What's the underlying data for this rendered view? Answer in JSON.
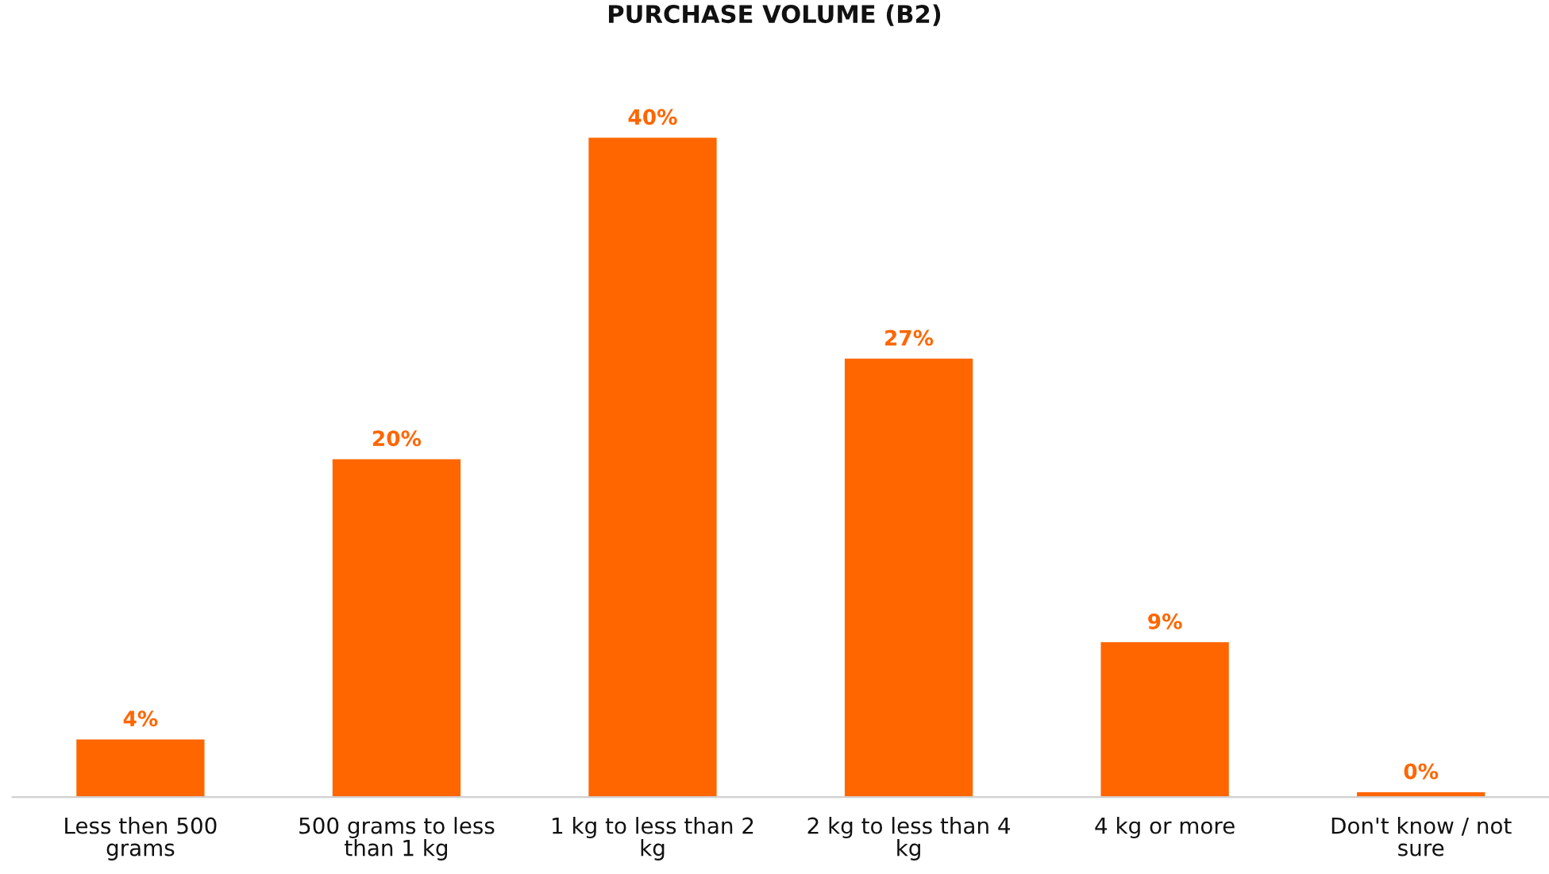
{
  "chart_data": {
    "type": "bar",
    "title": "PURCHASE VOLUME (B2)",
    "categories": [
      "Less then 500 grams",
      "500 grams to less than 1 kg",
      "1 kg to less than 2 kg",
      "2 kg to less than 4 kg",
      "4 kg or more",
      "Don't know / not sure"
    ],
    "values": [
      3.5,
      20.5,
      40,
      26.6,
      9.4,
      0.3
    ],
    "value_labels": [
      "4%",
      "20%",
      "40%",
      "27%",
      "9%",
      "0%"
    ],
    "color": "#ff6600"
  }
}
